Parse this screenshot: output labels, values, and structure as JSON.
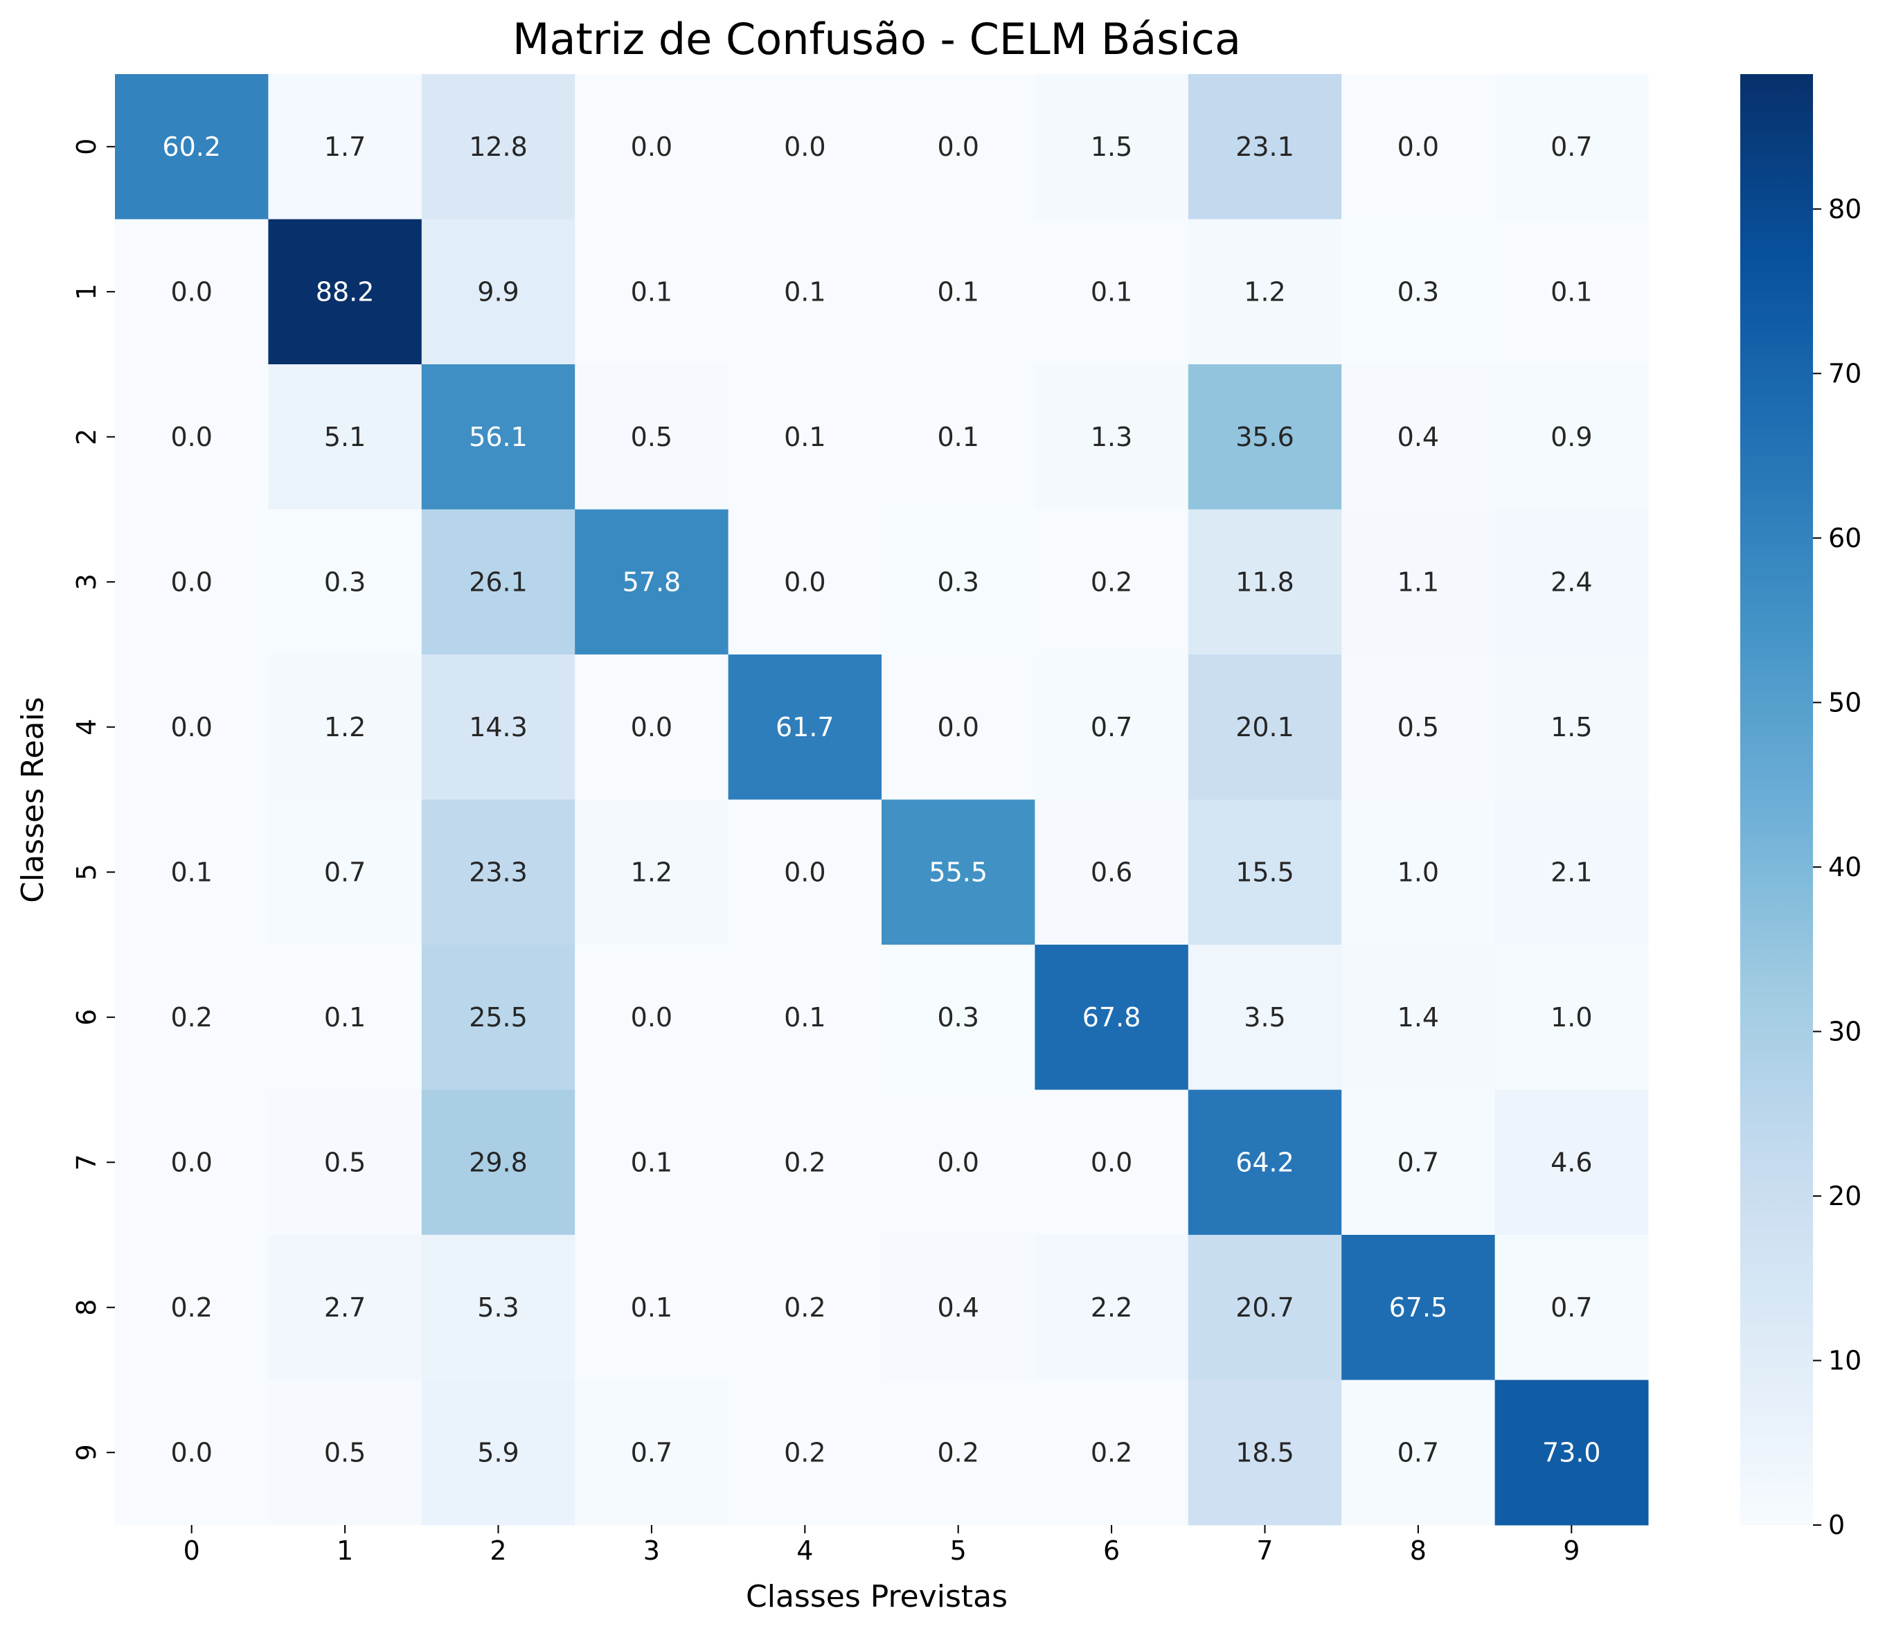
{
  "chart_data": {
    "type": "heatmap",
    "title": "Matriz de Confusão - CELM Básica",
    "xlabel": "Classes Previstas",
    "ylabel": "Classes Reais",
    "x_categories": [
      "0",
      "1",
      "2",
      "3",
      "4",
      "5",
      "6",
      "7",
      "8",
      "9"
    ],
    "y_categories": [
      "0",
      "1",
      "2",
      "3",
      "4",
      "5",
      "6",
      "7",
      "8",
      "9"
    ],
    "values": [
      [
        60.2,
        1.7,
        12.8,
        0.0,
        0.0,
        0.0,
        1.5,
        23.1,
        0.0,
        0.7
      ],
      [
        0.0,
        88.2,
        9.9,
        0.1,
        0.1,
        0.1,
        0.1,
        1.2,
        0.3,
        0.1
      ],
      [
        0.0,
        5.1,
        56.1,
        0.5,
        0.1,
        0.1,
        1.3,
        35.6,
        0.4,
        0.9
      ],
      [
        0.0,
        0.3,
        26.1,
        57.8,
        0.0,
        0.3,
        0.2,
        11.8,
        1.1,
        2.4
      ],
      [
        0.0,
        1.2,
        14.3,
        0.0,
        61.7,
        0.0,
        0.7,
        20.1,
        0.5,
        1.5
      ],
      [
        0.1,
        0.7,
        23.3,
        1.2,
        0.0,
        55.5,
        0.6,
        15.5,
        1.0,
        2.1
      ],
      [
        0.2,
        0.1,
        25.5,
        0.0,
        0.1,
        0.3,
        67.8,
        3.5,
        1.4,
        1.0
      ],
      [
        0.0,
        0.5,
        29.8,
        0.1,
        0.2,
        0.0,
        0.0,
        64.2,
        0.7,
        4.6
      ],
      [
        0.2,
        2.7,
        5.3,
        0.1,
        0.2,
        0.4,
        2.2,
        20.7,
        67.5,
        0.7
      ],
      [
        0.0,
        0.5,
        5.9,
        0.7,
        0.2,
        0.2,
        0.2,
        18.5,
        0.7,
        73.0
      ]
    ],
    "value_format": "0.0",
    "colormap": "Blues",
    "colorbar": {
      "min": 0,
      "max": 88.2,
      "ticks": [
        0,
        10,
        20,
        30,
        40,
        50,
        60,
        70,
        80
      ],
      "position": "right"
    },
    "grid": false
  }
}
